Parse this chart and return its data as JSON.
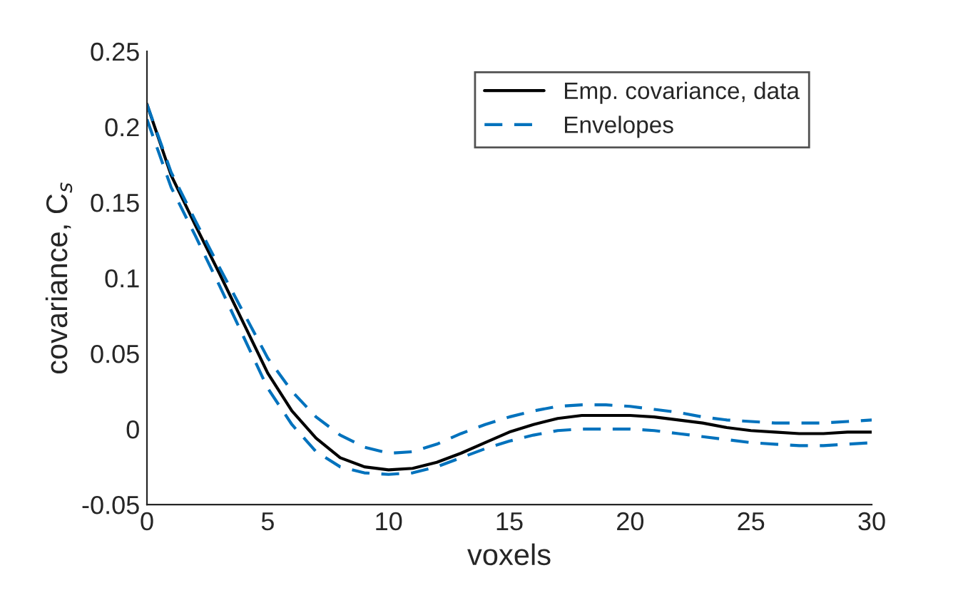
{
  "chart_data": {
    "type": "line",
    "xlabel": "voxels",
    "ylabel": "covariance, C$_{s}$",
    "x": [
      0,
      1,
      2,
      3,
      4,
      5,
      6,
      7,
      8,
      9,
      10,
      11,
      12,
      13,
      14,
      15,
      16,
      17,
      18,
      19,
      20,
      21,
      22,
      23,
      24,
      25,
      26,
      27,
      28,
      29,
      30
    ],
    "series": [
      {
        "name": "Emp. covariance, data",
        "color": "#000000",
        "line_style": "solid",
        "values": [
          0.215,
          0.168,
          0.135,
          0.103,
          0.07,
          0.037,
          0.012,
          -0.006,
          -0.019,
          -0.025,
          -0.027,
          -0.026,
          -0.022,
          -0.016,
          -0.009,
          -0.002,
          0.003,
          0.007,
          0.009,
          0.009,
          0.009,
          0.008,
          0.006,
          0.004,
          0.001,
          -0.001,
          -0.002,
          -0.003,
          -0.003,
          -0.002,
          -0.002
        ]
      },
      {
        "name": "Envelopes",
        "color": "#0072bd",
        "line_style": "dashed",
        "values": [
          0.215,
          0.17,
          0.138,
          0.107,
          0.077,
          0.047,
          0.025,
          0.008,
          -0.004,
          -0.012,
          -0.016,
          -0.015,
          -0.01,
          -0.003,
          0.003,
          0.008,
          0.012,
          0.015,
          0.016,
          0.016,
          0.015,
          0.013,
          0.011,
          0.008,
          0.006,
          0.005,
          0.004,
          0.004,
          0.004,
          0.005,
          0.006
        ]
      },
      {
        "color": "#0072bd",
        "line_style": "dashed",
        "values": [
          0.205,
          0.16,
          0.128,
          0.095,
          0.061,
          0.027,
          0.003,
          -0.015,
          -0.025,
          -0.029,
          -0.03,
          -0.029,
          -0.025,
          -0.019,
          -0.013,
          -0.008,
          -0.004,
          -0.001,
          0.0,
          0.0,
          0.0,
          -0.001,
          -0.003,
          -0.005,
          -0.007,
          -0.009,
          -0.01,
          -0.011,
          -0.011,
          -0.01,
          -0.009
        ]
      }
    ],
    "xlim": [
      0,
      30
    ],
    "xticks": [
      0,
      5,
      10,
      15,
      20,
      25,
      30
    ],
    "ylim": [
      -0.05,
      0.25
    ],
    "yticks": [
      -0.05,
      0,
      0.05,
      0.1,
      0.15,
      0.2,
      0.25
    ],
    "grid": false,
    "legend": "top right"
  }
}
